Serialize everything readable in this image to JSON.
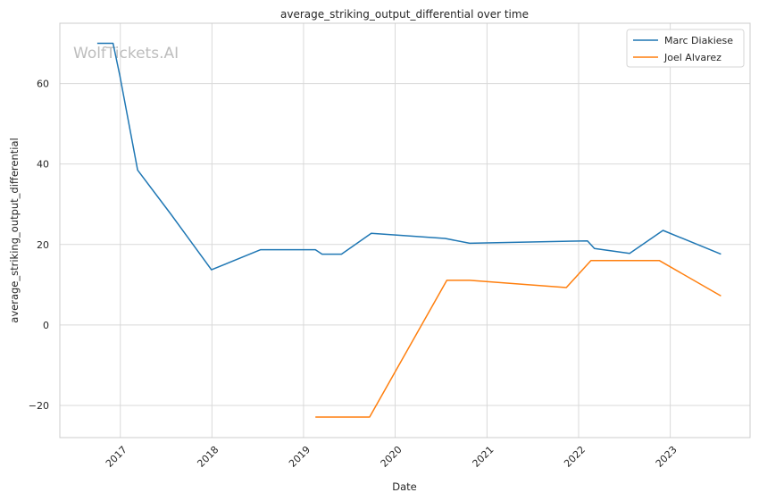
{
  "chart_data": {
    "type": "line",
    "title": "average_striking_output_differential over time",
    "xlabel": "Date",
    "ylabel": "average_striking_output_differential",
    "watermark": "WolfTickets.AI",
    "x_ticks": [
      "2017",
      "2018",
      "2019",
      "2020",
      "2021",
      "2022",
      "2023"
    ],
    "y_ticks": [
      -20,
      0,
      20,
      40,
      60
    ],
    "xlim": [
      "2016-05-05",
      "2023-11-15"
    ],
    "ylim": [
      -28,
      75
    ],
    "grid": true,
    "legend_position": "top-right",
    "series": [
      {
        "name": "Marc Diakiese",
        "color": "#1f77b4",
        "points": [
          [
            "2016-10-01",
            70.0
          ],
          [
            "2016-12-03",
            70.0
          ],
          [
            "2016-12-30",
            62.0
          ],
          [
            "2017-03-11",
            38.5
          ],
          [
            "2017-07-22",
            27.5
          ],
          [
            "2017-12-30",
            13.7
          ],
          [
            "2018-07-14",
            18.7
          ],
          [
            "2019-02-17",
            18.7
          ],
          [
            "2019-03-16",
            17.6
          ],
          [
            "2019-06-01",
            17.6
          ],
          [
            "2019-09-28",
            22.8
          ],
          [
            "2020-07-18",
            21.5
          ],
          [
            "2020-10-24",
            20.3
          ],
          [
            "2022-02-05",
            20.9
          ],
          [
            "2022-03-05",
            19.0
          ],
          [
            "2022-07-23",
            17.8
          ],
          [
            "2022-12-03",
            23.5
          ],
          [
            "2023-07-22",
            17.6
          ]
        ]
      },
      {
        "name": "Joel Alvarez",
        "color": "#ff7f0e",
        "points": [
          [
            "2019-02-17",
            -22.9
          ],
          [
            "2019-09-21",
            -22.9
          ],
          [
            "2020-07-25",
            11.1
          ],
          [
            "2020-10-24",
            11.1
          ],
          [
            "2021-11-13",
            9.3
          ],
          [
            "2022-02-19",
            16.0
          ],
          [
            "2022-11-19",
            16.0
          ],
          [
            "2023-07-22",
            7.2
          ]
        ]
      }
    ]
  }
}
